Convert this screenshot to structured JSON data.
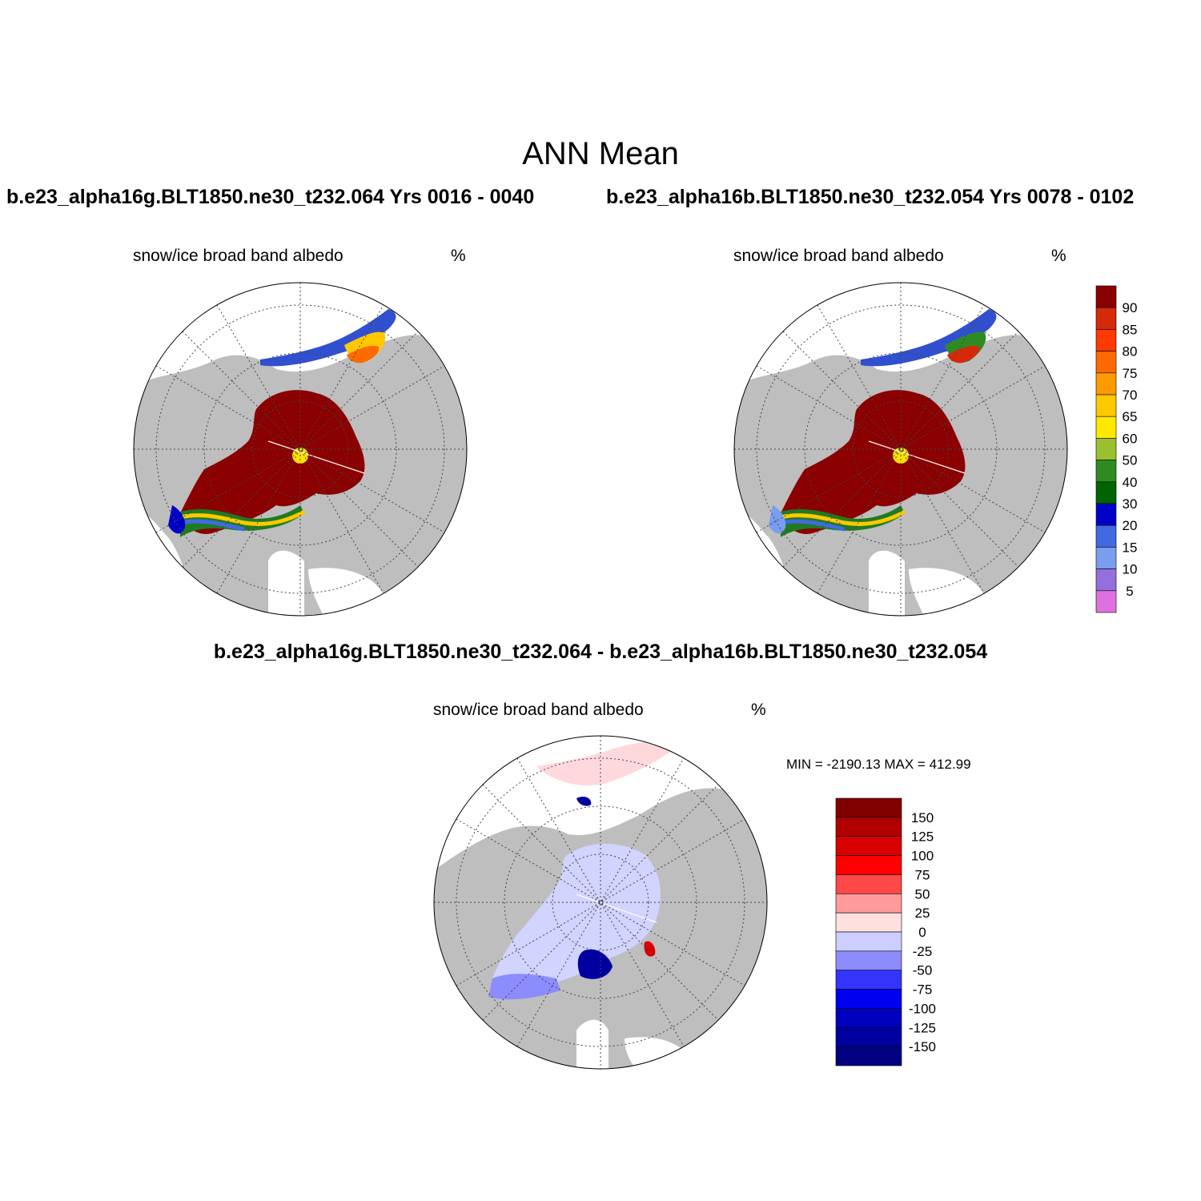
{
  "title": "ANN Mean",
  "panels": [
    {
      "case": "b.e23_alpha16g.BLT1850.ne30_t232.064  Yrs 0016 - 0040",
      "variable": "snow/ice broad band albedo",
      "units": "%"
    },
    {
      "case": "b.e23_alpha16b.BLT1850.ne30_t232.054  Yrs 0078 - 0102",
      "variable": "snow/ice broad band albedo",
      "units": "%"
    }
  ],
  "diff": {
    "title": "b.e23_alpha16g.BLT1850.ne30_t232.064 - b.e23_alpha16b.BLT1850.ne30_t232.054",
    "variable": "snow/ice broad band albedo",
    "units": "%",
    "minmax": "MIN = -2190.13 MAX = 412.99"
  },
  "colorbar_main": {
    "labels": [
      "90",
      "85",
      "80",
      "75",
      "70",
      "65",
      "60",
      "50",
      "40",
      "30",
      "20",
      "15",
      "10",
      "5"
    ],
    "colors": [
      "#8b0000",
      "#d42a0a",
      "#ff3a00",
      "#ff6a00",
      "#ff9a00",
      "#ffc800",
      "#ffe800",
      "#9ac030",
      "#2e8b22",
      "#006400",
      "#0000c8",
      "#4169e1",
      "#7b9df0",
      "#9370db",
      "#e070e0"
    ]
  },
  "colorbar_diff": {
    "labels": [
      "150",
      "125",
      "100",
      "75",
      "50",
      "25",
      "0",
      "-25",
      "-50",
      "-75",
      "-100",
      "-125",
      "-150"
    ],
    "colors": [
      "#800000",
      "#b00000",
      "#d80000",
      "#ff0000",
      "#ff4848",
      "#ff9a9a",
      "#ffe0e0",
      "#cccfff",
      "#8c8cff",
      "#3434ff",
      "#0000f0",
      "#0000c0",
      "#0000a0",
      "#000080"
    ]
  },
  "map_colors": {
    "land": "#bebebe",
    "ice": "#8b0000",
    "pole": "#ffe000",
    "diff_fill": "#d0d4ff",
    "diff_pos": "#ffd8dc",
    "diff_neg": "#0000a0"
  }
}
